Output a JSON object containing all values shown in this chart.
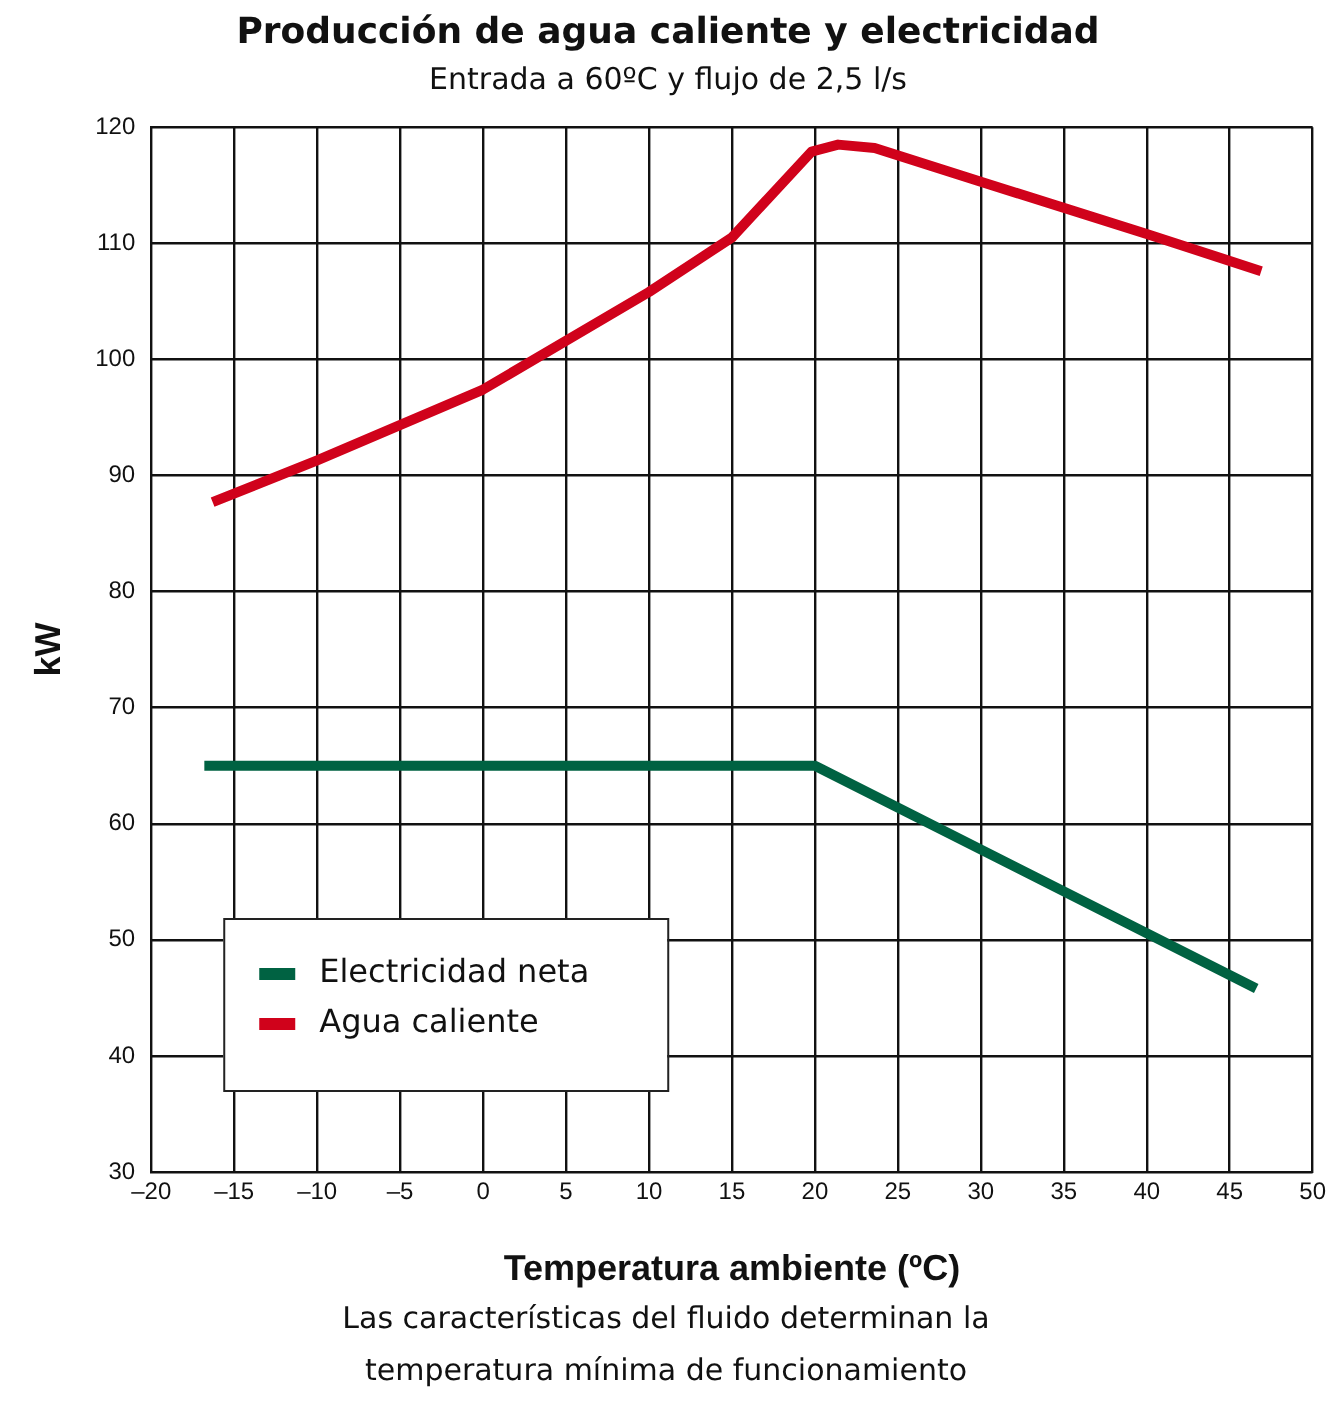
{
  "chart_data": {
    "type": "line",
    "title": "Producción de agua caliente y electricidad",
    "subtitle": "Entrada a 60ºC y flujo de 2,5 l/s",
    "xlabel": "Temperatura ambiente (ºC)",
    "ylabel": "kW",
    "annotations": [
      "Las características del fluido determinan la temperatura mínima de funcionamiento"
    ],
    "xlim": [
      -20,
      50
    ],
    "ylim": [
      30,
      120
    ],
    "xticks": [
      {
        "value": -20,
        "label": "–20"
      },
      {
        "value": -15,
        "label": "–15"
      },
      {
        "value": -10,
        "label": "–10"
      },
      {
        "value": -5,
        "label": "–5"
      },
      0,
      5,
      10,
      15,
      20,
      25,
      30,
      35,
      40,
      45,
      50
    ],
    "yticks": [
      30,
      40,
      50,
      60,
      70,
      80,
      90,
      100,
      110,
      120
    ],
    "grid": true,
    "legend": "bottom left",
    "marker": "none",
    "line_style": "solid",
    "series": [
      {
        "name": "Electricidad neta",
        "color": "#006242",
        "x": [
          -16.8,
          20,
          46.6
        ],
        "values": [
          65,
          65,
          45.8
        ]
      },
      {
        "name": "Agua caliente",
        "color": "#d0021b",
        "x": [
          -16.3,
          -10,
          0,
          10,
          15,
          19.8,
          21.4,
          23.6,
          30,
          40,
          46.9
        ],
        "values": [
          87.7,
          91.3,
          97.4,
          105.8,
          110.5,
          117.9,
          118.5,
          118.2,
          115.3,
          110.8,
          107.6
        ]
      }
    ]
  }
}
